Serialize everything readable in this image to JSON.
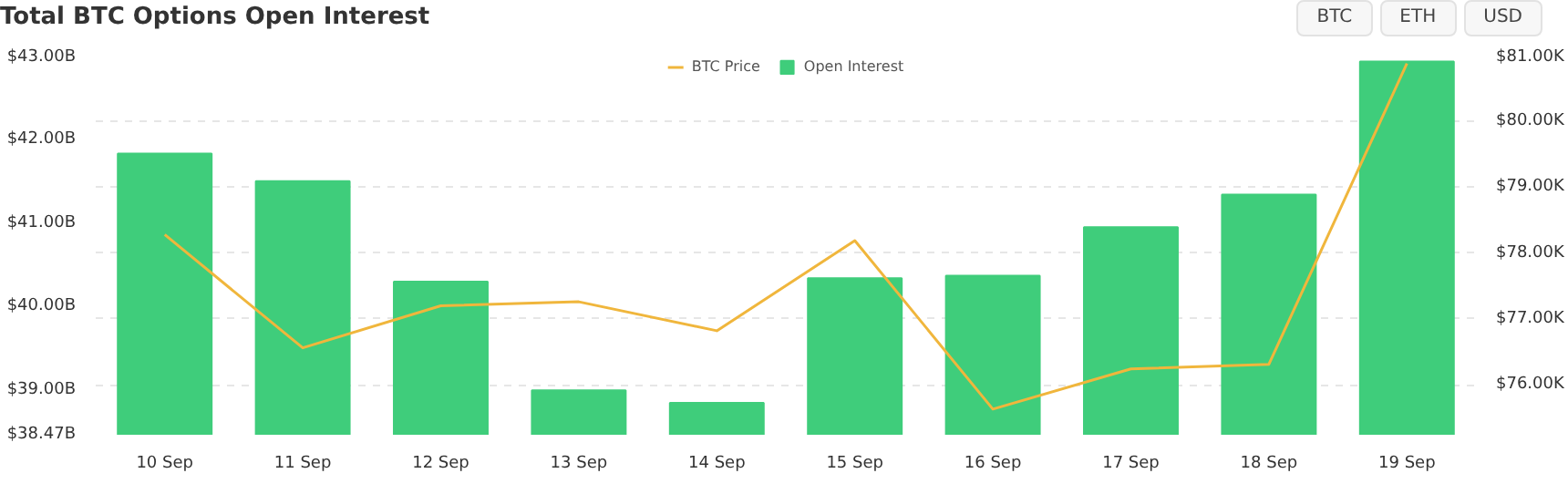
{
  "chart_data": {
    "type": "bar",
    "title": "Total BTC Options Open Interest",
    "categories": [
      "10 Sep",
      "11 Sep",
      "12 Sep",
      "13 Sep",
      "14 Sep",
      "15 Sep",
      "16 Sep",
      "17 Sep",
      "18 Sep",
      "19 Sep"
    ],
    "series": [
      {
        "name": "BTC Price",
        "type": "line",
        "axis": "y2",
        "color": "#f0b63c",
        "values": [
          78.28,
          76.56,
          77.2,
          77.26,
          76.82,
          78.19,
          75.63,
          76.24,
          76.31,
          80.88
        ]
      },
      {
        "name": "Open Interest",
        "color": "#3fcd7b",
        "values": [
          41.83,
          41.5,
          40.3,
          39.0,
          38.85,
          40.34,
          40.37,
          40.95,
          41.34,
          42.93
        ]
      }
    ],
    "ylim": [
      38.47,
      43.0
    ],
    "yticks": [
      {
        "value": 38.47,
        "label": "$38.47B"
      },
      {
        "value": 39,
        "label": "$39.00B"
      },
      {
        "value": 40,
        "label": "$40.00B"
      },
      {
        "value": 41,
        "label": "$41.00B"
      },
      {
        "value": 42,
        "label": "$42.00B"
      },
      {
        "value": 43,
        "label": "$43.00B"
      }
    ],
    "y2lim": [
      75.24,
      81.0
    ],
    "y2ticks": [
      {
        "value": 76,
        "label": "$76.00K"
      },
      {
        "value": 77,
        "label": "$77.00K"
      },
      {
        "value": 78,
        "label": "$78.00K"
      },
      {
        "value": 79,
        "label": "$79.00K"
      },
      {
        "value": 80,
        "label": "$80.00K"
      },
      {
        "value": 81,
        "label": "$81.00K"
      }
    ],
    "grid": "y2",
    "legend": "top",
    "marker": "none",
    "line_style": "solid",
    "annotations": [
      "BTC",
      "ETH",
      "USD"
    ]
  }
}
